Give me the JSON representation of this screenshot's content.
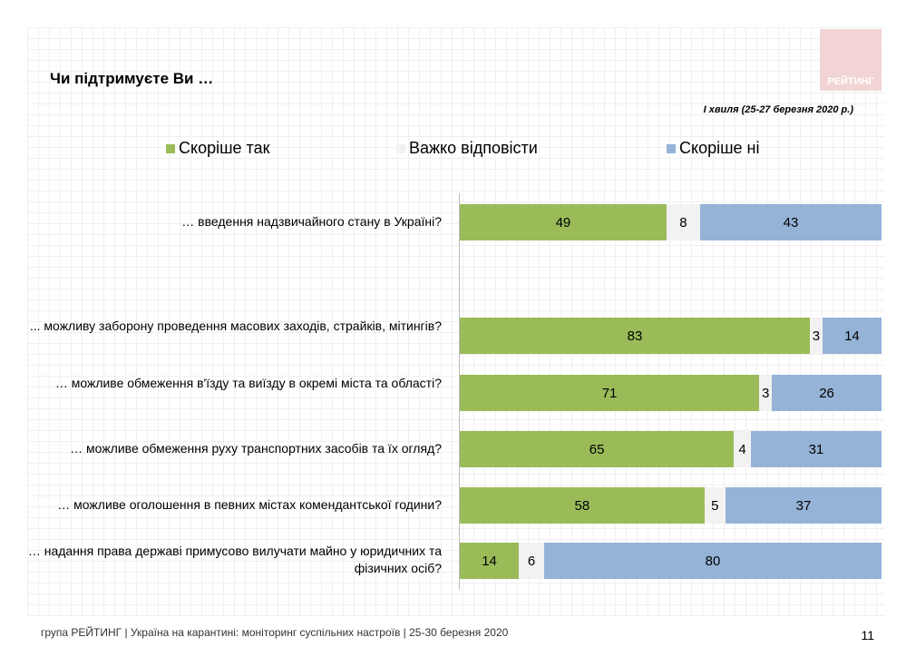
{
  "logo": "РЕЙТИНГ",
  "chart_data": {
    "type": "bar",
    "orientation": "horizontal",
    "stacked": true,
    "title": "Чи підтримуєте Ви …",
    "subtitle": "І хвиля (25-27 березня 2020 р.)",
    "legend_position": "top",
    "series": [
      {
        "name": "Скоріше так",
        "color": "#9bbb59",
        "values": [
          49,
          83,
          71,
          65,
          58,
          14
        ]
      },
      {
        "name": "Важко відповісти",
        "color": "#f2f2f2",
        "values": [
          8,
          3,
          3,
          4,
          5,
          6
        ]
      },
      {
        "name": "Скоріше ні",
        "color": "#95b3d7",
        "values": [
          43,
          14,
          26,
          31,
          37,
          80
        ]
      }
    ],
    "categories": [
      "… введення надзвичайного стану в Україні?",
      "... можливу заборону проведення масових заходів, страйків, мітингів?",
      "… можливе обмеження в'їзду та виїзду в окремі міста та області?",
      "… можливе обмеження руху транспортних засобів та їх огляд?",
      "… можливе оголошення в певних містах комендантської години?",
      "… надання  права державі примусово вилучати майно у юридичних та фізичних осіб?"
    ],
    "xlim": [
      0,
      100
    ]
  },
  "footer": "група РЕЙТИНГ  |  Україна на карантині: моніторинг суспільних настроїв  |  25-30 березня 2020",
  "page": "11"
}
